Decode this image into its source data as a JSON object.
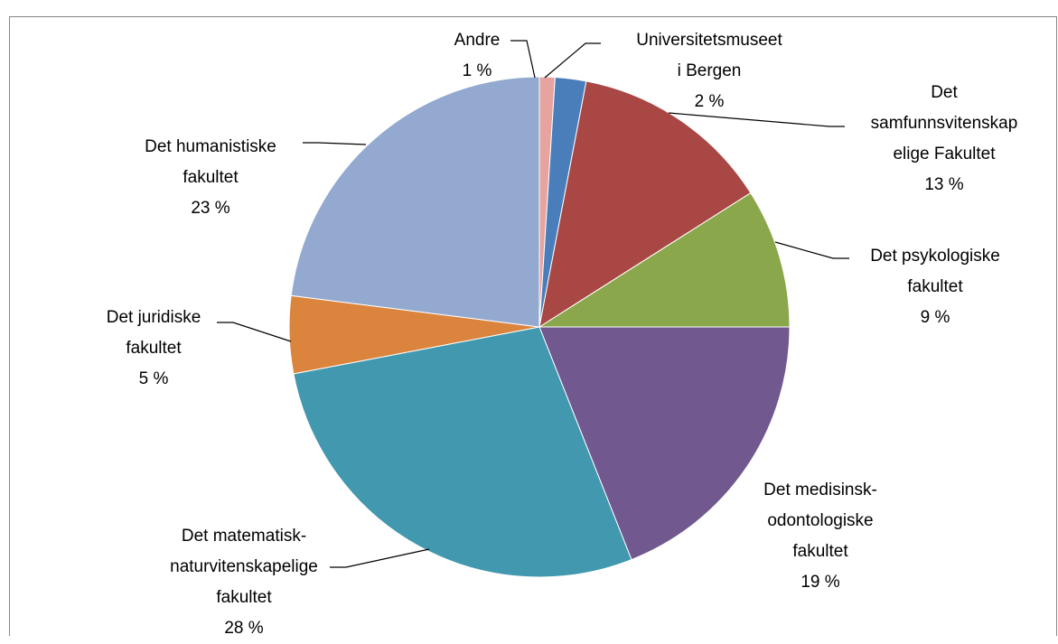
{
  "chart_data": {
    "type": "pie",
    "categories": [
      "Andre",
      "Universitetsmuseet\ni Bergen",
      "Det\nsamfunnsvitenskap\nelige Fakultet",
      "Det psykologiske\nfakultet",
      "Det medisinsk-\nodontologiske\nfakultet",
      "Det matematisk-\nnaturvitenskapelige\nfakultet",
      "Det juridiske\nfakultet",
      "Det humanistiske\nfakultet"
    ],
    "values": [
      1,
      2,
      13,
      9,
      19,
      28,
      5,
      23
    ],
    "value_labels": [
      "1 %",
      "2 %",
      "13 %",
      "9 %",
      "19 %",
      "28 %",
      "5 %",
      "23 %"
    ],
    "colors": [
      "#e6a3a0",
      "#4a7ebb",
      "#a84744",
      "#8aa84b",
      "#71588f",
      "#4198af",
      "#db843d",
      "#93a9cf"
    ]
  }
}
